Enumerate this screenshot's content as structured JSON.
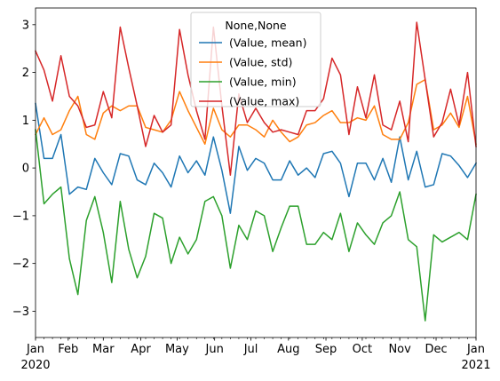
{
  "chart_data": {
    "type": "line",
    "x_start": "2020-01-05",
    "x_step_days": 7,
    "x_ticks": [
      {
        "date": "2020-01-05",
        "label": "Jan",
        "sublabel": "2020"
      },
      {
        "date": "2020-02-01",
        "label": "Feb",
        "sublabel": ""
      },
      {
        "date": "2020-03-01",
        "label": "Mar",
        "sublabel": ""
      },
      {
        "date": "2020-04-01",
        "label": "Apr",
        "sublabel": ""
      },
      {
        "date": "2020-05-01",
        "label": "May",
        "sublabel": ""
      },
      {
        "date": "2020-06-01",
        "label": "Jun",
        "sublabel": ""
      },
      {
        "date": "2020-07-01",
        "label": "Jul",
        "sublabel": ""
      },
      {
        "date": "2020-08-01",
        "label": "Aug",
        "sublabel": ""
      },
      {
        "date": "2020-09-01",
        "label": "Sep",
        "sublabel": ""
      },
      {
        "date": "2020-10-01",
        "label": "Oct",
        "sublabel": ""
      },
      {
        "date": "2020-11-01",
        "label": "Nov",
        "sublabel": ""
      },
      {
        "date": "2020-12-01",
        "label": "Dec",
        "sublabel": ""
      },
      {
        "date": "2021-01-03",
        "label": "Jan",
        "sublabel": "2021"
      }
    ],
    "ylim": [
      -3.55,
      3.35
    ],
    "y_ticks": [
      -3,
      -2,
      -1,
      0,
      1,
      2,
      3
    ],
    "grid": false,
    "legend": {
      "title": "None,None",
      "position": "top-center"
    },
    "series": [
      {
        "name": "(Value, mean)",
        "color": "#1f77b4",
        "values": [
          1.35,
          0.2,
          0.2,
          0.7,
          -0.55,
          -0.4,
          -0.45,
          0.2,
          -0.1,
          -0.35,
          0.3,
          0.25,
          -0.25,
          -0.35,
          0.1,
          -0.1,
          -0.4,
          0.25,
          -0.1,
          0.15,
          -0.15,
          0.65,
          -0.05,
          -0.95,
          0.45,
          -0.05,
          0.2,
          0.1,
          -0.25,
          -0.25,
          0.15,
          -0.15,
          0.0,
          -0.2,
          0.3,
          0.35,
          0.1,
          -0.6,
          0.1,
          0.1,
          -0.25,
          0.2,
          -0.3,
          0.65,
          -0.25,
          0.35,
          -0.4,
          -0.35,
          0.3,
          0.25,
          0.05,
          -0.2,
          0.1
        ]
      },
      {
        "name": "(Value, std)",
        "color": "#ff7f0e",
        "values": [
          0.7,
          1.05,
          0.7,
          0.8,
          1.2,
          1.5,
          0.7,
          0.6,
          1.15,
          1.3,
          1.2,
          1.3,
          1.3,
          0.85,
          0.8,
          0.75,
          1.0,
          1.6,
          1.2,
          0.85,
          0.5,
          1.25,
          0.8,
          0.65,
          0.9,
          0.9,
          0.8,
          0.65,
          1.0,
          0.75,
          0.55,
          0.65,
          0.9,
          0.95,
          1.1,
          1.2,
          0.95,
          0.95,
          1.05,
          1.0,
          1.3,
          0.7,
          0.6,
          0.6,
          0.95,
          1.75,
          1.85,
          0.8,
          0.9,
          1.15,
          0.85,
          1.5,
          0.5
        ]
      },
      {
        "name": "(Value, min)",
        "color": "#2ca02c",
        "values": [
          0.8,
          -0.75,
          -0.55,
          -0.4,
          -1.9,
          -2.65,
          -1.1,
          -0.6,
          -1.35,
          -2.4,
          -0.7,
          -1.7,
          -2.3,
          -1.85,
          -0.95,
          -1.05,
          -2.0,
          -1.45,
          -1.8,
          -1.5,
          -0.7,
          -0.6,
          -1.0,
          -2.1,
          -1.2,
          -1.5,
          -0.9,
          -1.0,
          -1.75,
          -1.25,
          -0.8,
          -0.8,
          -1.6,
          -1.6,
          -1.35,
          -1.5,
          -0.95,
          -1.75,
          -1.15,
          -1.4,
          -1.6,
          -1.15,
          -1.0,
          -0.5,
          -1.5,
          -1.65,
          -3.2,
          -1.4,
          -1.55,
          -1.45,
          -1.35,
          -1.5,
          -0.55
        ]
      },
      {
        "name": "(Value, max)",
        "color": "#d62728",
        "values": [
          2.45,
          2.05,
          1.4,
          2.35,
          1.5,
          1.3,
          0.85,
          0.9,
          1.6,
          1.05,
          2.95,
          2.1,
          1.3,
          0.45,
          1.1,
          0.75,
          0.9,
          2.9,
          1.95,
          1.2,
          0.6,
          2.95,
          1.3,
          -0.15,
          1.55,
          0.95,
          1.25,
          0.95,
          0.75,
          0.8,
          0.75,
          0.7,
          1.2,
          1.2,
          1.45,
          2.3,
          1.95,
          0.7,
          1.7,
          1.05,
          1.95,
          0.9,
          0.8,
          1.4,
          0.55,
          3.05,
          1.85,
          0.65,
          0.95,
          1.65,
          0.9,
          2.0,
          0.45
        ]
      }
    ]
  }
}
